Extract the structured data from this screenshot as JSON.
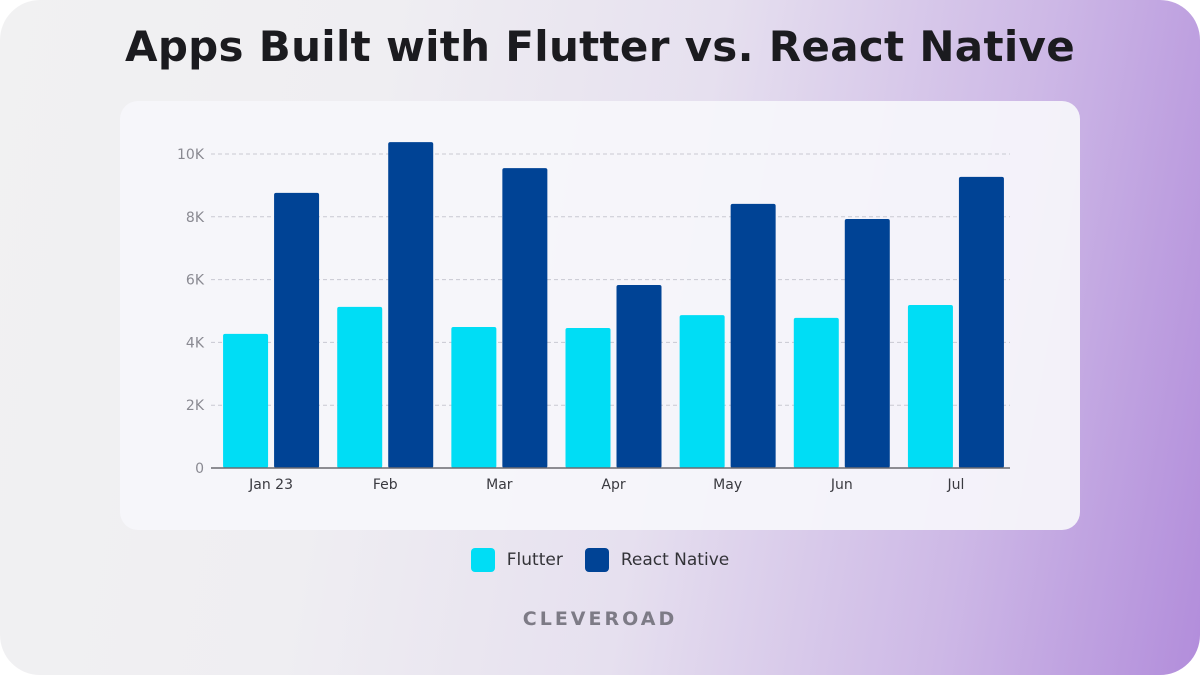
{
  "brand": "CLEVEROAD",
  "colors": {
    "flutter": "#00ddf5",
    "react_native": "#004395"
  },
  "chart_data": {
    "type": "bar",
    "title": "Apps Built with Flutter vs. React Native",
    "xlabel": "",
    "ylabel": "",
    "categories": [
      "Jan 23",
      "Feb",
      "Mar",
      "Apr",
      "May",
      "Jun",
      "Jul"
    ],
    "series": [
      {
        "name": "Flutter",
        "color": "#00ddf5",
        "values": [
          4270,
          5130,
          4490,
          4460,
          4870,
          4780,
          5190
        ]
      },
      {
        "name": "React Native",
        "color": "#004395",
        "values": [
          8760,
          10380,
          9550,
          5830,
          8410,
          7930,
          9270
        ]
      }
    ],
    "ylim": [
      0,
      10000
    ],
    "yticks": [
      0,
      2000,
      4000,
      6000,
      8000,
      10000
    ],
    "ytick_labels": [
      "0",
      "2K",
      "4K",
      "6K",
      "8K",
      "10K"
    ],
    "grid": true,
    "legend_position": "bottom-center"
  }
}
